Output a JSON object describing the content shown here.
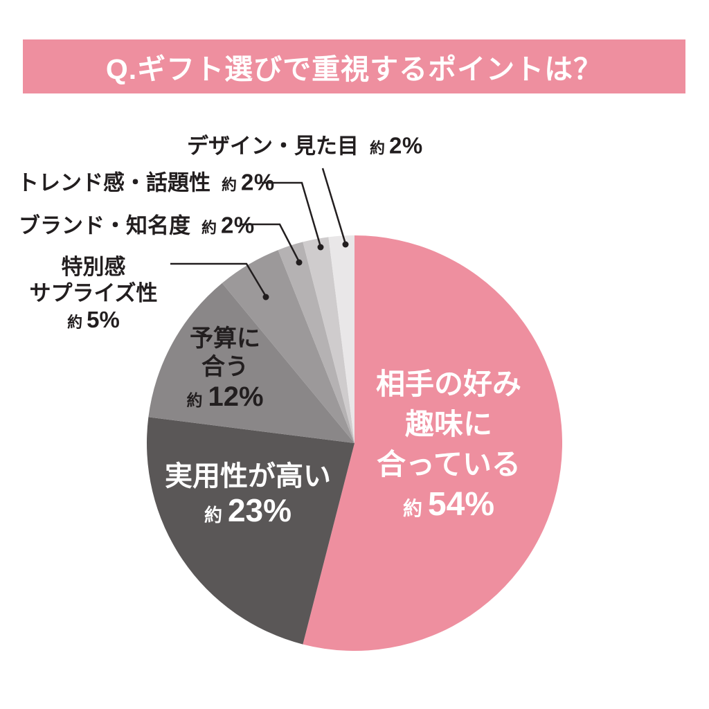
{
  "header": {
    "title": "Q.ギフト選びで重視するポイントは？"
  },
  "colors": {
    "background": "#ffffff",
    "banner_bg": "#ee8f9f",
    "title_text": "#ffffff",
    "label_text": "#221e1f",
    "leader_line": "#221e1f"
  },
  "chart_data": {
    "type": "pie",
    "title": "Q.ギフト選びで重視するポイントは？",
    "direction": "clockwise",
    "start_angle": "12-oclock",
    "total_percent": 100,
    "slices": [
      {
        "key": "recipient-taste",
        "name": "相手の好み趣味に合っている",
        "name_lines": [
          "相手の好み",
          "趣味に",
          "合っている"
        ],
        "approx": "約",
        "percent": 54,
        "percent_text": "54%",
        "color": "#ee8f9f",
        "text_color": "#ffffff",
        "label_position": "inside"
      },
      {
        "key": "practical",
        "name": "実用性が高い",
        "name_lines": [
          "実用性が高い"
        ],
        "approx": "約",
        "percent": 23,
        "percent_text": "23%",
        "color": "#5a5757",
        "text_color": "#ffffff",
        "label_position": "inside"
      },
      {
        "key": "fits-budget",
        "name": "予算に合う",
        "name_lines": [
          "予算に",
          "合う"
        ],
        "approx": "約",
        "percent": 12,
        "percent_text": "12%",
        "color": "#8a8788",
        "text_color": "#221e1f",
        "label_position": "inside"
      },
      {
        "key": "special-surprise",
        "name": "特別感サプライズ性",
        "name_lines": [
          "特別感",
          "サプライズ性"
        ],
        "approx": "約",
        "percent": 5,
        "percent_text": "5%",
        "color": "#9c999a",
        "text_color": "#221e1f",
        "label_position": "outside"
      },
      {
        "key": "brand-recognition",
        "name": "ブランド・知名度",
        "name_lines": [
          "ブランド・知名度"
        ],
        "approx": "約",
        "percent": 2,
        "percent_text": "2%",
        "color": "#b5b2b3",
        "text_color": "#221e1f",
        "label_position": "outside"
      },
      {
        "key": "trendiness",
        "name": "トレンド感・話題性",
        "name_lines": [
          "トレンド感・話題性"
        ],
        "approx": "約",
        "percent": 2,
        "percent_text": "2%",
        "color": "#cfcccd",
        "text_color": "#221e1f",
        "label_position": "outside"
      },
      {
        "key": "design-looks",
        "name": "デザイン・見た目",
        "name_lines": [
          "デザイン・見た目"
        ],
        "approx": "約",
        "percent": 2,
        "percent_text": "2%",
        "color": "#e9e7e8",
        "text_color": "#221e1f",
        "label_position": "outside"
      }
    ]
  }
}
